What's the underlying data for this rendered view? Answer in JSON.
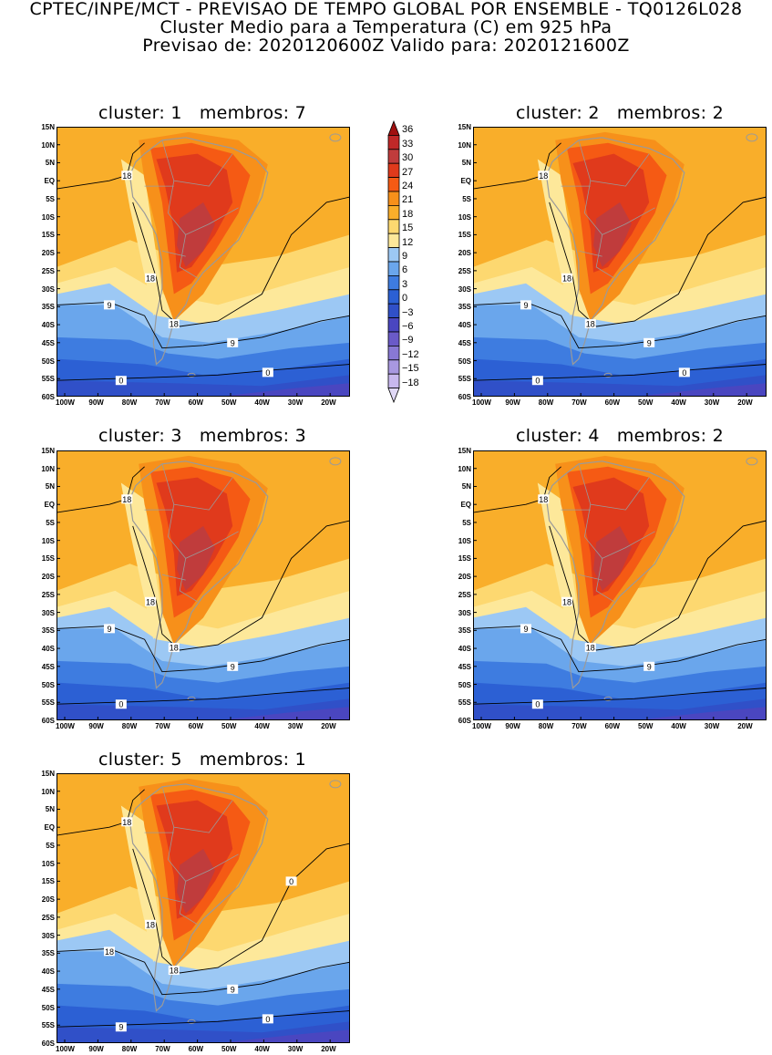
{
  "header": {
    "line1": "CPTEC/INPE/MCT - PREVISAO DE TEMPO GLOBAL POR ENSEMBLE - TQ0126L028",
    "line2": "Cluster Medio para a Temperatura (C) em 925 hPa",
    "line3": "Previsao de: 2020120600Z   Valido para: 2020121600Z"
  },
  "panels": [
    {
      "title": "cluster: 1   membros: 7",
      "contour_labels": [
        "18",
        "18",
        "18",
        "9",
        "9",
        "0",
        "0"
      ]
    },
    {
      "title": "cluster: 2   membros: 2",
      "contour_labels": [
        "18",
        "18",
        "18",
        "9",
        "9",
        "0",
        "0"
      ]
    },
    {
      "title": "cluster: 3   membros: 3",
      "contour_labels": [
        "18",
        "18",
        "18",
        "9",
        "9",
        "0"
      ]
    },
    {
      "title": "cluster: 4   membros: 2",
      "contour_labels": [
        "18",
        "18",
        "18",
        "9",
        "9",
        "0"
      ]
    },
    {
      "title": "cluster: 5   membros: 1",
      "contour_labels": [
        "18",
        "18",
        "18",
        "18",
        "9",
        "9",
        "0",
        "0"
      ]
    }
  ],
  "lat_labels": [
    "15N",
    "10N",
    "5N",
    "EQ",
    "5S",
    "10S",
    "15S",
    "20S",
    "25S",
    "30S",
    "35S",
    "40S",
    "45S",
    "50S",
    "55S",
    "60S"
  ],
  "lon_labels": [
    "100W",
    "90W",
    "80W",
    "70W",
    "60W",
    "50W",
    "40W",
    "30W",
    "20W"
  ],
  "colorbar": {
    "levels": [
      "36",
      "33",
      "30",
      "27",
      "24",
      "21",
      "18",
      "15",
      "12",
      "9",
      "6",
      "3",
      "0",
      "-3",
      "-6",
      "-9",
      "-12",
      "-15",
      "-18"
    ],
    "colors": [
      "#a01010",
      "#c02828",
      "#c03c3c",
      "#e03a1c",
      "#f55a14",
      "#f7901a",
      "#f9ae2a",
      "#fdd870",
      "#fde89a",
      "#9cc8f4",
      "#6aa6ec",
      "#3e7ce0",
      "#2c60d4",
      "#3050c8",
      "#4a46c0",
      "#6a5ac8",
      "#8878d4",
      "#a898e0",
      "#c8b8ee",
      "#e0d8f6"
    ]
  },
  "colors": {
    "land_border": "#9a9a9a",
    "contour": "#000000"
  }
}
